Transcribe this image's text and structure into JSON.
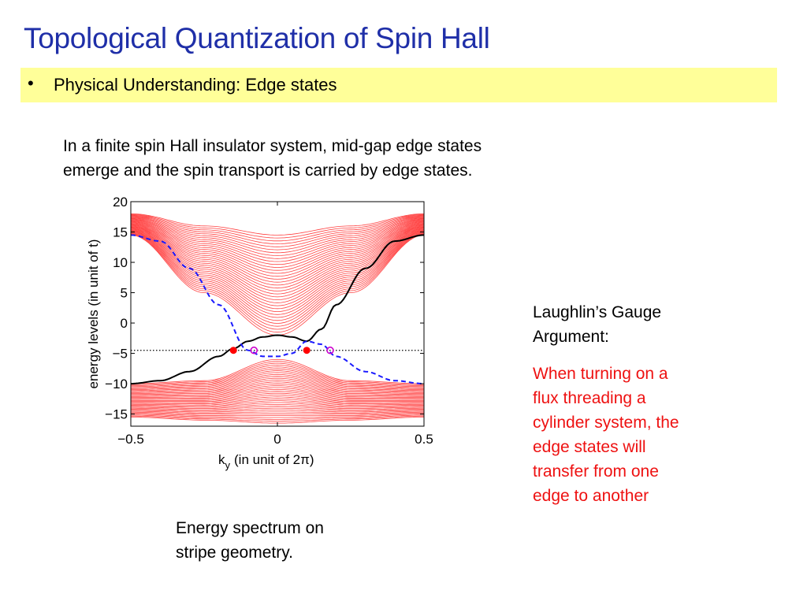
{
  "slide": {
    "title": "Topological Quantization of Spin Hall",
    "bullet_marker": "•",
    "bullet": "Physical Understanding: Edge states",
    "intro_lines": [
      "In a finite spin Hall insulator system, mid-gap edge states",
      "emerge and the spin transport is carried by edge states."
    ],
    "side_heading_lines": [
      "Laughlin’s Gauge",
      "Argument:"
    ],
    "side_red_lines": [
      "When turning on a",
      "flux threading a",
      "cylinder system, the",
      "edge states will",
      "transfer from one",
      "edge to another"
    ],
    "caption_lines": [
      "Energy spectrum on",
      "stripe geometry."
    ]
  },
  "colors": {
    "title": "#1f2fa8",
    "highlight": "#ffff99",
    "bands": "#ff0000",
    "edge_solid": "#000000",
    "edge_dashed": "#1a1aff",
    "markers_open": "#cc00cc",
    "red_text": "#ee1111"
  },
  "chart_data": {
    "type": "line",
    "xlabel_main": "k",
    "xlabel_sub": "y",
    "xlabel_rest": "(in unit of 2π)",
    "ylabel": "energy levels (in unit of t)",
    "xlim": [
      -0.5,
      0.5
    ],
    "ylim": [
      -17,
      20
    ],
    "xticks": [
      -0.5,
      0,
      0.5
    ],
    "xtick_labels": [
      "−0.5",
      "0",
      "0.5"
    ],
    "yticks": [
      20,
      15,
      10,
      5,
      0,
      -5,
      -10,
      -15
    ],
    "ytick_labels": [
      "20",
      "15",
      "10",
      "5",
      "0",
      "−5",
      "−10",
      "−15"
    ],
    "fermi_level": -4.5,
    "bulk_bands": {
      "upper": {
        "edge_k": [
          -0.5,
          -0.25,
          0,
          0.25,
          0.5
        ],
        "top": [
          18,
          16,
          14.5,
          16,
          18
        ],
        "bottom": [
          14.5,
          5,
          -2,
          5,
          14.5
        ]
      },
      "lower": {
        "edge_k": [
          -0.5,
          -0.25,
          0,
          0.25,
          0.5
        ],
        "top": [
          -10,
          -9.5,
          -6,
          -9.5,
          -10
        ],
        "bottom": [
          -15.5,
          -16,
          -16.5,
          -16,
          -15.5
        ]
      }
    },
    "series": [
      {
        "style": "solid",
        "x": [
          -0.5,
          -0.4,
          -0.3,
          -0.2,
          -0.15,
          -0.1,
          -0.05,
          0,
          0.05,
          0.1,
          0.15,
          0.2,
          0.3,
          0.4,
          0.5
        ],
        "y": [
          -10,
          -9.5,
          -8,
          -5.5,
          -4.2,
          -3,
          -2.3,
          -2,
          -2.3,
          -3,
          -1,
          3,
          9,
          13.5,
          14.5
        ]
      },
      {
        "style": "dashed",
        "x": [
          -0.5,
          -0.4,
          -0.3,
          -0.2,
          -0.1,
          -0.05,
          0,
          0.05,
          0.1,
          0.15,
          0.2,
          0.3,
          0.4,
          0.5
        ],
        "y": [
          14.5,
          13.5,
          9,
          3,
          -4.5,
          -5.5,
          -5.5,
          -5,
          -3,
          -3.5,
          -5.5,
          -8,
          -9.5,
          -10
        ]
      }
    ],
    "crossing_points_filled": [
      {
        "x": -0.15,
        "y": -4.5
      },
      {
        "x": 0.1,
        "y": -4.5
      }
    ],
    "crossing_points_open": [
      {
        "x": -0.08,
        "y": -4.5
      },
      {
        "x": 0.18,
        "y": -4.5
      }
    ]
  }
}
